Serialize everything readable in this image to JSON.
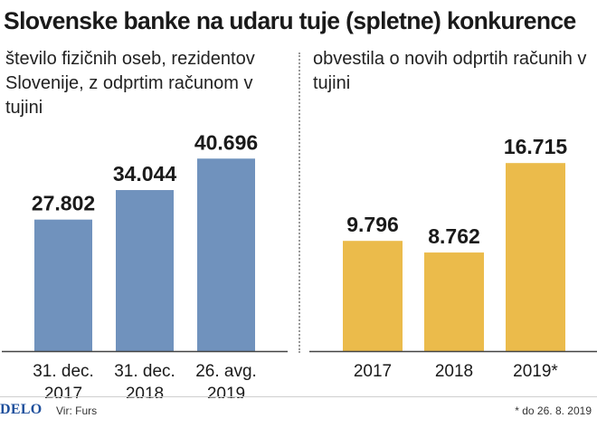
{
  "title": "Slovenske banke na udaru tuje (spletne) konkurence",
  "footer": {
    "logo": "DELO",
    "source": "Vir: Furs",
    "note": "* do 26. 8. 2019"
  },
  "colors": {
    "left_bars": "#7092bd",
    "right_bars": "#ebbb4b",
    "axis": "#444444"
  },
  "chart_data": [
    {
      "type": "bar",
      "title": "število fizičnih oseb, rezidentov Slovenije, z odprtim računom v tujini",
      "categories": [
        [
          "31. dec.",
          "2017"
        ],
        [
          "31. dec.",
          "2018"
        ],
        [
          "26. avg.",
          "2019"
        ]
      ],
      "values": [
        27802,
        34044,
        40696
      ],
      "value_labels": [
        "27.802",
        "34.044",
        "40.696"
      ],
      "ylim": [
        0,
        44000
      ],
      "grid": false,
      "color": "#7092bd"
    },
    {
      "type": "bar",
      "title": "obvestila o novih odprtih računih v tujini",
      "categories": [
        [
          "2017"
        ],
        [
          "2018"
        ],
        [
          "2019*"
        ]
      ],
      "values": [
        9796,
        8762,
        16715
      ],
      "value_labels": [
        "9.796",
        "8.762",
        "16.715"
      ],
      "ylim": [
        0,
        18500
      ],
      "grid": false,
      "color": "#ebbb4b"
    }
  ]
}
